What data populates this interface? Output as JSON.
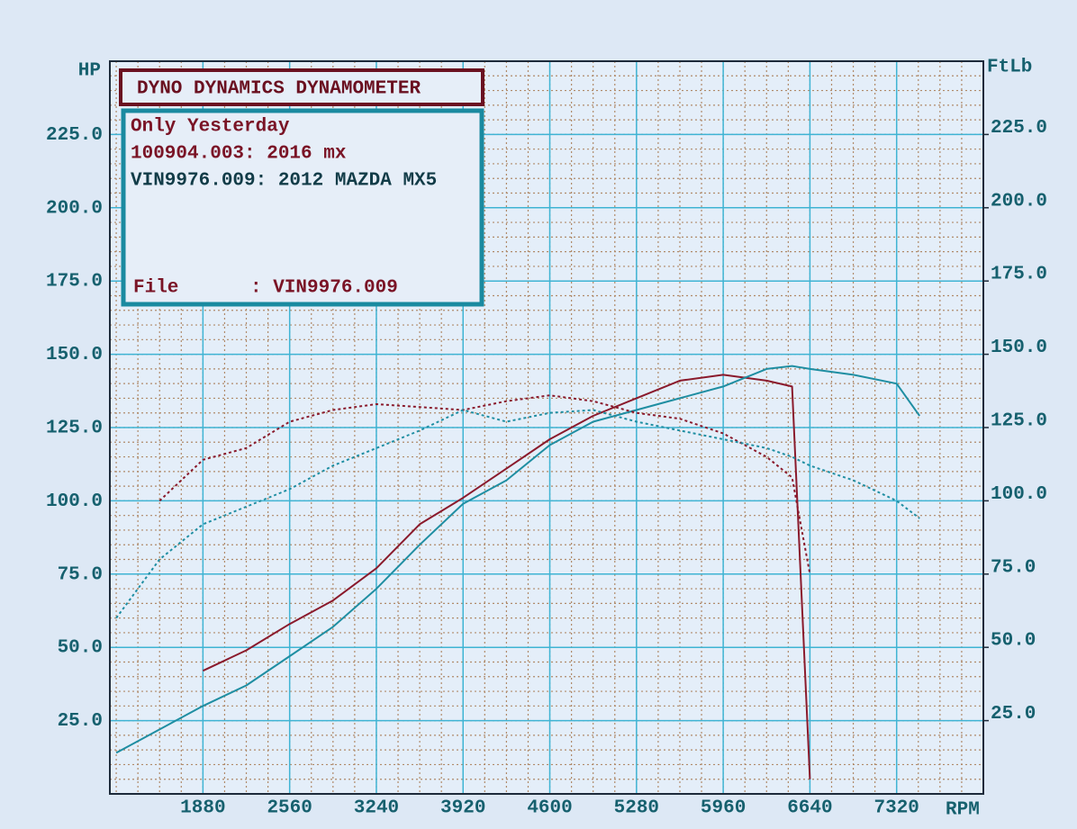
{
  "chart_data": {
    "type": "line",
    "title": "DYNO DYNAMICS DYNAMOMETER",
    "info_lines": [
      "Only Yesterday",
      "100904.003: 2016 mx",
      "VIN9976.009: 2012 MAZDA MX5"
    ],
    "info_colors": [
      "#7a1426",
      "#7a1426",
      "#123c48"
    ],
    "file_label": "File",
    "file_value": ": VIN9976.009",
    "y_label": "HP",
    "y2_label": "FtLb",
    "x_label": "RPM",
    "x": [
      1200,
      1540,
      1880,
      2220,
      2560,
      2900,
      3240,
      3580,
      3920,
      4260,
      4600,
      4940,
      5280,
      5620,
      5960,
      6300,
      6500,
      6640,
      6980,
      7320,
      7500
    ],
    "series": [
      {
        "color": "#8a1a2c",
        "line_style": "solid",
        "values": [
          null,
          null,
          42,
          49,
          58,
          66,
          77,
          92,
          101,
          111,
          121,
          129,
          135,
          141,
          143,
          141,
          139,
          5,
          null,
          null,
          null
        ]
      },
      {
        "color": "#1f8ea2",
        "line_style": "solid",
        "values": [
          14,
          22,
          30,
          37,
          47,
          57,
          70,
          85,
          99,
          107,
          119,
          127,
          131,
          135,
          139,
          145,
          146,
          145,
          143,
          140,
          129
        ]
      },
      {
        "color": "#8a1a2c",
        "line_style": "dotted",
        "axis": "y2",
        "values": [
          null,
          100,
          114,
          118,
          127,
          131,
          133,
          132,
          131,
          134,
          136,
          134,
          130,
          128,
          123,
          115,
          108,
          75,
          null,
          null,
          null
        ]
      },
      {
        "color": "#1f8ea2",
        "line_style": "dotted",
        "axis": "y2",
        "values": [
          60,
          80,
          92,
          98,
          104,
          112,
          118,
          124,
          131,
          127,
          130,
          131,
          127,
          124,
          121,
          118,
          115,
          112,
          107,
          100,
          94
        ]
      }
    ],
    "xlim": [
      1150,
      8000
    ],
    "ylim": [
      0,
      250
    ],
    "y2lim": [
      0,
      250
    ],
    "xticks": [
      1880,
      2560,
      3240,
      3920,
      4600,
      5280,
      5960,
      6640,
      7320
    ],
    "yticks": [
      {
        "value": 25,
        "label": "25.0"
      },
      {
        "value": 50,
        "label": "50.0"
      },
      {
        "value": 75,
        "label": "75.0"
      },
      {
        "value": 100,
        "label": "100.0"
      },
      {
        "value": 125,
        "label": "125.0"
      },
      {
        "value": 150,
        "label": "150.0"
      },
      {
        "value": 175,
        "label": "175.0"
      },
      {
        "value": 200,
        "label": "200.0"
      },
      {
        "value": 225,
        "label": "225.0"
      }
    ],
    "y2ticks": [
      {
        "value": 25,
        "label": "25.0"
      },
      {
        "value": 50,
        "label": "50.0"
      },
      {
        "value": 75,
        "label": "75.0"
      },
      {
        "value": 100,
        "label": "100.0"
      },
      {
        "value": 125,
        "label": "125.0"
      },
      {
        "value": 150,
        "label": "150.0"
      },
      {
        "value": 175,
        "label": "175.0"
      },
      {
        "value": 200,
        "label": "200.0"
      },
      {
        "value": 225,
        "label": "225.0"
      }
    ],
    "grid": true,
    "grid_color": "#3fb4d4",
    "minor_grid": true,
    "minor_grid_color": "#b08a6a"
  }
}
